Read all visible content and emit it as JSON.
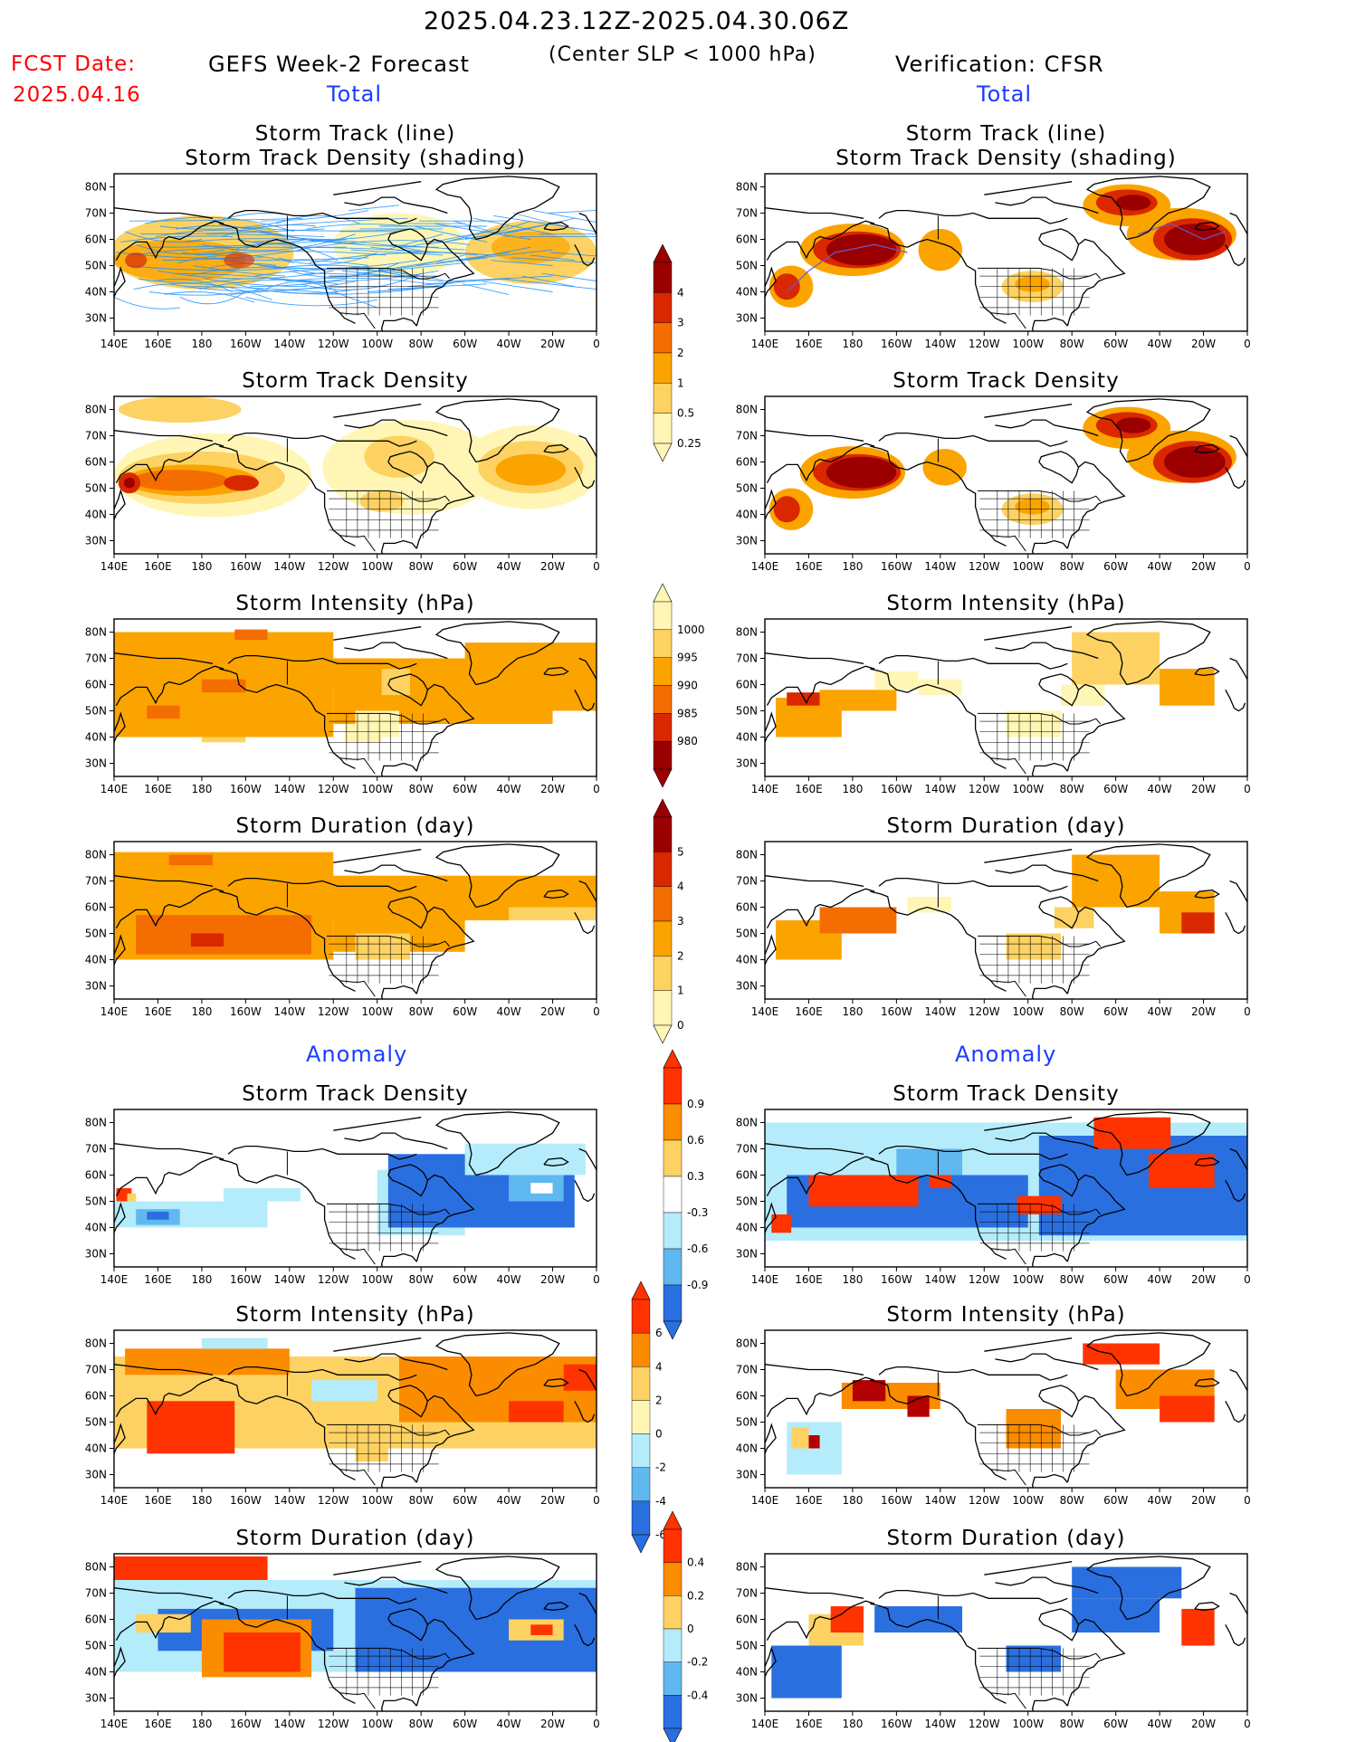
{
  "header": {
    "period": "2025.04.23.12Z-2025.04.30.06Z",
    "fcst_label": "FCST Date:",
    "fcst_date": "2025.04.16",
    "left_title": "GEFS Week-2 Forecast",
    "criterion": "(Center SLP < 1000 hPa)",
    "right_title": "Verification: CFSR",
    "section_total": "Total",
    "section_anomaly": "Anomaly"
  },
  "colors": {
    "text": "#000000",
    "red_text": "#ff0000",
    "blue_text": "#1a3cff",
    "track_line": "#1e90ff",
    "track_line_obs": "#6a5acd"
  },
  "axes": {
    "x_ticks": [
      "140E",
      "160E",
      "180",
      "160W",
      "140W",
      "120W",
      "100W",
      "80W",
      "60W",
      "40W",
      "20W",
      "0"
    ],
    "y_ticks": [
      "80N",
      "70N",
      "60N",
      "50N",
      "40N",
      "30N"
    ]
  },
  "panel_titles": {
    "track": [
      "Storm Track (line)",
      "Storm Track Density (shading)"
    ],
    "density": "Storm Track Density",
    "intensity": "Storm Intensity (hPa)",
    "duration": "Storm Duration (day)"
  },
  "colorbars": {
    "density_total": {
      "labels": [
        "4",
        "3",
        "2",
        "1",
        "0.5",
        "0.25"
      ],
      "colors": [
        "#9b0000",
        "#d92800",
        "#f46d00",
        "#fba400",
        "#fdd262",
        "#fff6b5"
      ]
    },
    "intensity_total": {
      "labels": [
        "1000",
        "995",
        "990",
        "985",
        "980"
      ],
      "colors": [
        "#fff6b5",
        "#fdd262",
        "#fba400",
        "#f46d00",
        "#d92800",
        "#9b0000"
      ]
    },
    "duration_total": {
      "labels": [
        "5",
        "4",
        "3",
        "2",
        "1",
        "0"
      ],
      "colors": [
        "#9b0000",
        "#d92800",
        "#f46d00",
        "#fba400",
        "#fdd262",
        "#fff6b5"
      ]
    },
    "density_anom": {
      "labels": [
        "0.9",
        "0.6",
        "0.3",
        "-0.3",
        "-0.6",
        "-0.9"
      ],
      "colors": [
        "#ff3300",
        "#fb8c00",
        "#fdd262",
        "#ffffff",
        "#b4ecfb",
        "#5fb8f0",
        "#2a6fe0"
      ]
    },
    "intensity_anom": {
      "labels": [
        "6",
        "4",
        "2",
        "0",
        "-2",
        "-4",
        "-6"
      ],
      "colors": [
        "#ff3300",
        "#fb8c00",
        "#fdd262",
        "#fff6b5",
        "#b4ecfb",
        "#5fb8f0",
        "#2a6fe0"
      ]
    },
    "duration_anom": {
      "labels": [
        "0.4",
        "0.2",
        "0",
        "-0.2",
        "-0.4"
      ],
      "colors": [
        "#ff3300",
        "#fb8c00",
        "#fdd262",
        "#b4ecfb",
        "#5fb8f0",
        "#2a6fe0"
      ]
    }
  }
}
